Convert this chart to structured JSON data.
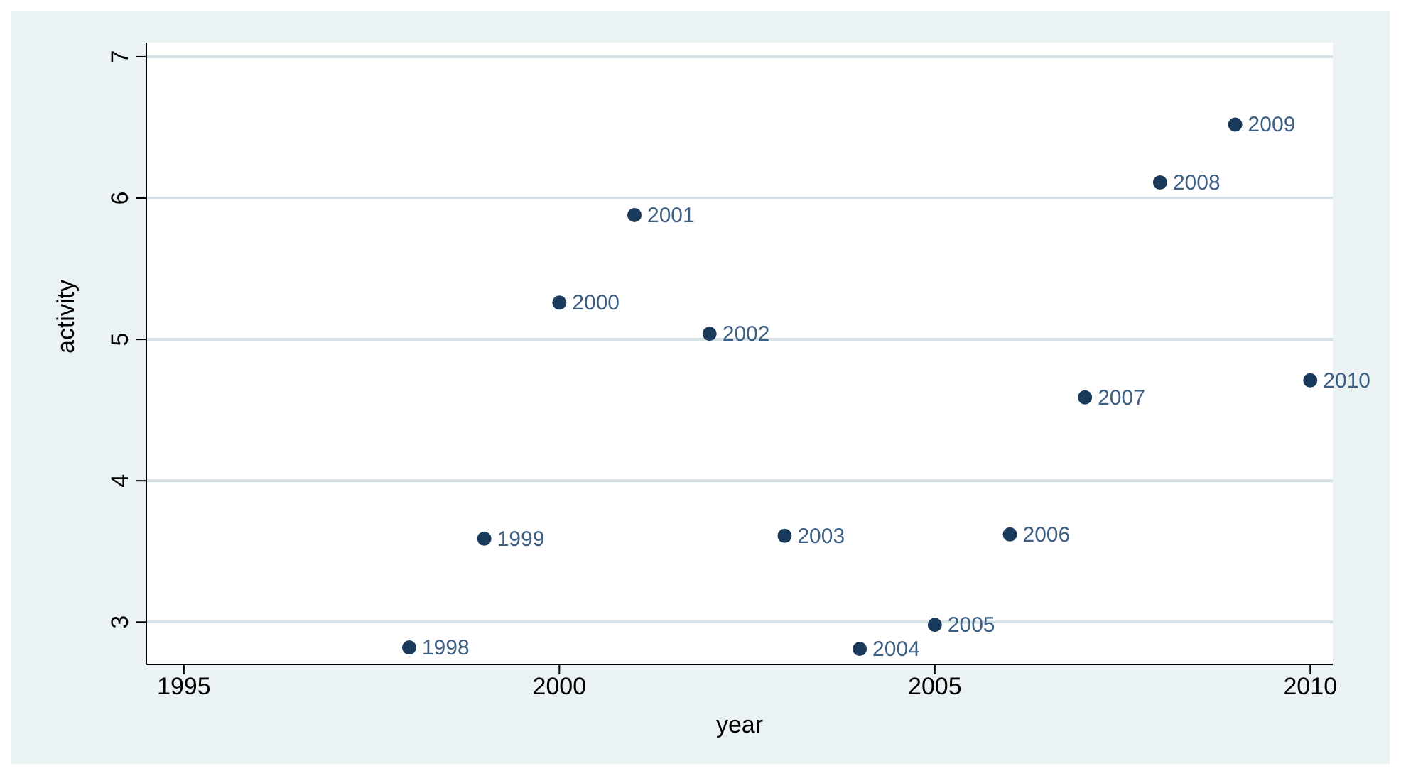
{
  "chart_data": {
    "type": "scatter",
    "xlabel": "year",
    "ylabel": "activity",
    "x": [
      1998,
      1999,
      2000,
      2001,
      2002,
      2003,
      2004,
      2005,
      2006,
      2007,
      2008,
      2009,
      2010
    ],
    "values": [
      2.82,
      3.59,
      5.26,
      5.88,
      5.04,
      3.61,
      2.81,
      2.98,
      3.62,
      4.59,
      6.11,
      6.52,
      4.71
    ],
    "color": "#1a3a5c",
    "marker": "circle",
    "xlim": [
      1994.5,
      2010.3
    ],
    "xticks": [
      1995,
      2000,
      2005,
      2010
    ],
    "ylim": [
      2.7,
      7.1
    ],
    "yticks": [
      3,
      4,
      5,
      6,
      7
    ],
    "grid": "y",
    "annotations": [
      {
        "text": "1998",
        "x": 1998,
        "y": 2.82
      },
      {
        "text": "1999",
        "x": 1999,
        "y": 3.59
      },
      {
        "text": "2000",
        "x": 2000,
        "y": 5.26
      },
      {
        "text": "2001",
        "x": 2001,
        "y": 5.88
      },
      {
        "text": "2002",
        "x": 2002,
        "y": 5.04
      },
      {
        "text": "2003",
        "x": 2003,
        "y": 3.61
      },
      {
        "text": "2004",
        "x": 2004,
        "y": 2.81
      },
      {
        "text": "2005",
        "x": 2005,
        "y": 2.98
      },
      {
        "text": "2006",
        "x": 2006,
        "y": 3.62
      },
      {
        "text": "2007",
        "x": 2007,
        "y": 4.59
      },
      {
        "text": "2008",
        "x": 2008,
        "y": 6.11
      },
      {
        "text": "2009",
        "x": 2009,
        "y": 6.52
      },
      {
        "text": "2010",
        "x": 2010,
        "y": 4.71
      }
    ]
  }
}
